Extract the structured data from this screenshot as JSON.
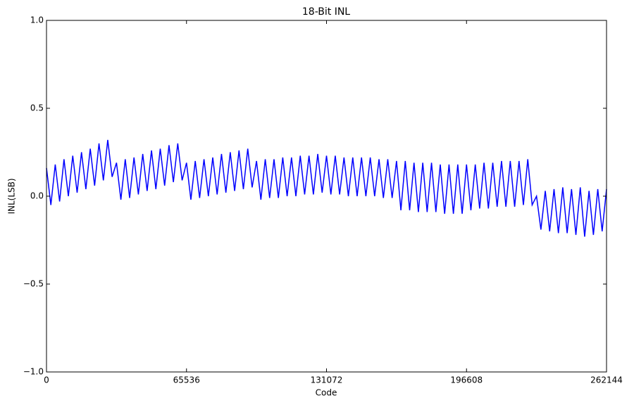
{
  "chart_data": {
    "type": "line",
    "title": "18-Bit INL",
    "x_label": "Code",
    "y_label": "INL(LSB)",
    "xlim": [
      0,
      262144
    ],
    "xticks": [
      0,
      65536,
      131072,
      196608,
      262144
    ],
    "ylim": [
      -1.0,
      1.0
    ],
    "yticks": [
      {
        "value": -1.0,
        "label": "−1.0"
      },
      {
        "value": -0.5,
        "label": "−0.5"
      },
      {
        "value": 0.0,
        "label": "0.0"
      },
      {
        "value": 0.5,
        "label": "0.5"
      },
      {
        "value": 1.0,
        "label": "1.0"
      }
    ],
    "grid": false,
    "x": [
      0,
      2048,
      4096,
      6144,
      8192,
      10240,
      12288,
      14336,
      16384,
      18432,
      20480,
      22528,
      24576,
      26624,
      28672,
      30720,
      32768,
      34816,
      36864,
      38912,
      40960,
      43008,
      45056,
      47104,
      49152,
      51200,
      53248,
      55296,
      57344,
      59392,
      61440,
      63488,
      65536,
      67584,
      69632,
      71680,
      73728,
      75776,
      77824,
      79872,
      81920,
      83968,
      86016,
      88064,
      90112,
      92160,
      94208,
      96256,
      98304,
      100352,
      102400,
      104448,
      106496,
      108544,
      110592,
      112640,
      114688,
      116736,
      118784,
      120832,
      122880,
      124928,
      126976,
      129024,
      131072,
      133120,
      135168,
      137216,
      139264,
      141312,
      143360,
      145408,
      147456,
      149504,
      151552,
      153600,
      155648,
      157696,
      159744,
      161792,
      163840,
      165888,
      167936,
      169984,
      172032,
      174080,
      176128,
      178176,
      180224,
      182272,
      184320,
      186368,
      188416,
      190464,
      192512,
      194560,
      196608,
      198656,
      200704,
      202752,
      204800,
      206848,
      208896,
      210944,
      212992,
      215040,
      217088,
      219136,
      221184,
      223232,
      225280,
      227328,
      229376,
      231424,
      233472,
      235520,
      237568,
      239616,
      241664,
      243712,
      245760,
      247808,
      249856,
      251904,
      253952,
      256000,
      258048,
      260096,
      262144
    ],
    "series": [
      {
        "color": "#0000ff",
        "values": [
          0.16,
          -0.05,
          0.18,
          -0.03,
          0.21,
          0.0,
          0.23,
          0.02,
          0.25,
          0.04,
          0.27,
          0.06,
          0.3,
          0.09,
          0.32,
          0.11,
          0.19,
          -0.02,
          0.21,
          -0.01,
          0.22,
          0.01,
          0.24,
          0.03,
          0.26,
          0.04,
          0.27,
          0.06,
          0.29,
          0.08,
          0.3,
          0.09,
          0.19,
          -0.02,
          0.2,
          -0.01,
          0.21,
          0.0,
          0.22,
          0.01,
          0.24,
          0.02,
          0.25,
          0.03,
          0.26,
          0.04,
          0.27,
          0.05,
          0.2,
          -0.02,
          0.21,
          -0.01,
          0.21,
          -0.01,
          0.22,
          0.0,
          0.22,
          0.0,
          0.23,
          0.01,
          0.23,
          0.01,
          0.24,
          0.02,
          0.23,
          0.01,
          0.23,
          0.01,
          0.22,
          0.0,
          0.22,
          0.0,
          0.22,
          0.0,
          0.22,
          0.0,
          0.21,
          -0.01,
          0.21,
          -0.01,
          0.2,
          -0.08,
          0.2,
          -0.08,
          0.19,
          -0.09,
          0.19,
          -0.09,
          0.19,
          -0.09,
          0.18,
          -0.1,
          0.18,
          -0.1,
          0.18,
          -0.1,
          0.18,
          -0.08,
          0.18,
          -0.07,
          0.19,
          -0.07,
          0.19,
          -0.06,
          0.2,
          -0.06,
          0.2,
          -0.06,
          0.2,
          -0.05,
          0.21,
          -0.05,
          0.0,
          -0.19,
          0.03,
          -0.2,
          0.04,
          -0.21,
          0.05,
          -0.21,
          0.04,
          -0.22,
          0.05,
          -0.23,
          0.03,
          -0.22,
          0.04,
          -0.2,
          0.04
        ]
      }
    ]
  }
}
